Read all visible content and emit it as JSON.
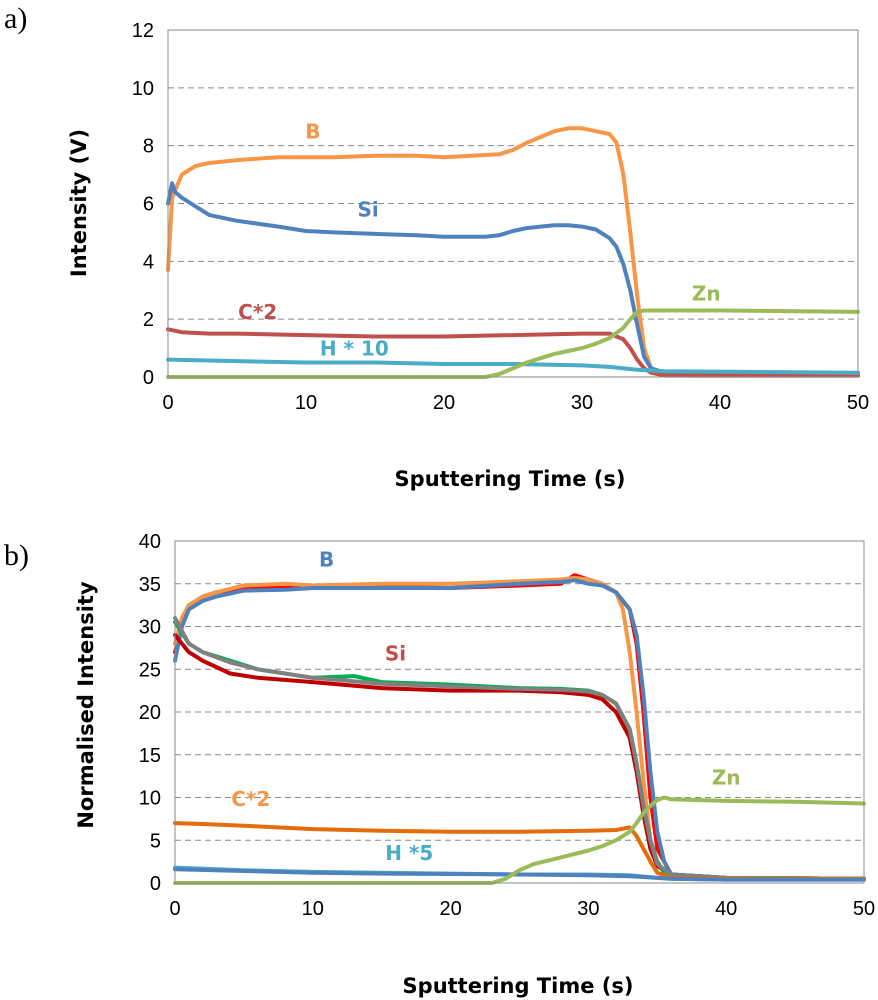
{
  "chart_data": [
    {
      "type": "line",
      "panel_label": "a)",
      "xlabel": "Sputtering Time (s)",
      "ylabel": "Intensity (V)",
      "xlim": [
        0,
        50
      ],
      "ylim": [
        0,
        12
      ],
      "xticks": [
        0,
        10,
        20,
        30,
        40,
        50
      ],
      "yticks": [
        0,
        2,
        4,
        6,
        8,
        10,
        12
      ],
      "grid": "horizontal dashed",
      "legend": "none",
      "series": [
        {
          "name": "B",
          "color": "#F79646",
          "x": [
            0,
            0.3,
            1,
            2,
            3,
            5,
            8,
            10,
            12,
            15,
            18,
            20,
            22,
            24,
            25,
            26,
            27,
            28,
            29,
            30,
            31,
            32,
            32.5,
            33,
            33.5,
            34,
            34.5,
            35,
            36,
            38,
            40,
            50
          ],
          "y": [
            3.7,
            6.2,
            7.0,
            7.3,
            7.4,
            7.5,
            7.6,
            7.6,
            7.6,
            7.65,
            7.65,
            7.6,
            7.65,
            7.7,
            7.85,
            8.1,
            8.3,
            8.5,
            8.6,
            8.6,
            8.5,
            8.4,
            8.1,
            7.0,
            5.0,
            2.8,
            1.0,
            0.3,
            0.1,
            0.05,
            0.05,
            0.05
          ]
        },
        {
          "name": "Si",
          "color": "#4F81BD",
          "x": [
            0,
            0.3,
            0.5,
            1,
            2,
            3,
            5,
            8,
            10,
            12,
            15,
            18,
            20,
            22,
            23,
            24,
            25,
            26,
            27,
            28,
            29,
            30,
            31,
            32,
            32.5,
            33,
            33.5,
            34,
            34.5,
            35,
            36,
            40,
            50
          ],
          "y": [
            6.0,
            6.7,
            6.4,
            6.2,
            5.9,
            5.6,
            5.4,
            5.2,
            5.05,
            5.0,
            4.95,
            4.9,
            4.85,
            4.85,
            4.85,
            4.9,
            5.05,
            5.15,
            5.2,
            5.25,
            5.25,
            5.2,
            5.1,
            4.8,
            4.5,
            3.9,
            3.0,
            1.8,
            0.7,
            0.3,
            0.15,
            0.1,
            0.1
          ]
        },
        {
          "name": "C*2",
          "color": "#C0504D",
          "x": [
            0,
            1,
            3,
            5,
            10,
            15,
            20,
            25,
            30,
            32,
            33,
            33.5,
            34,
            34.5,
            35,
            36,
            50
          ],
          "y": [
            1.65,
            1.55,
            1.5,
            1.5,
            1.45,
            1.4,
            1.4,
            1.45,
            1.5,
            1.5,
            1.3,
            1.0,
            0.6,
            0.3,
            0.15,
            0.05,
            0.05
          ]
        },
        {
          "name": "H * 10",
          "color": "#4BACC6",
          "x": [
            0,
            5,
            10,
            15,
            20,
            25,
            30,
            32,
            34,
            36,
            50
          ],
          "y": [
            0.6,
            0.55,
            0.5,
            0.5,
            0.45,
            0.45,
            0.4,
            0.35,
            0.25,
            0.2,
            0.15
          ]
        },
        {
          "name": "Zn",
          "color": "#9BBB59",
          "x": [
            0,
            23,
            24,
            25,
            26,
            27,
            28,
            29,
            30,
            31,
            32,
            33,
            33.5,
            34,
            34.5,
            35,
            36,
            40,
            50
          ],
          "y": [
            0.0,
            0.0,
            0.1,
            0.3,
            0.5,
            0.65,
            0.8,
            0.9,
            1.0,
            1.15,
            1.35,
            1.7,
            2.0,
            2.25,
            2.3,
            2.3,
            2.3,
            2.3,
            2.25
          ]
        }
      ],
      "annotations": [
        {
          "text": "B",
          "x": 10.5,
          "y": 8.25,
          "color": "#F79646"
        },
        {
          "text": "Si",
          "x": 14.5,
          "y": 5.55,
          "color": "#4F81BD"
        },
        {
          "text": "C*2",
          "x": 6.5,
          "y": 2.0,
          "color": "#C0504D"
        },
        {
          "text": "H * 10",
          "x": 13.5,
          "y": 0.75,
          "color": "#4BACC6"
        },
        {
          "text": "Zn",
          "x": 39,
          "y": 2.65,
          "color": "#9BBB59"
        }
      ]
    },
    {
      "type": "line",
      "panel_label": "b)",
      "xlabel": "Sputtering Time (s)",
      "ylabel": "Normalised Intensity",
      "xlim": [
        0,
        50
      ],
      "ylim": [
        0,
        40
      ],
      "xticks": [
        0,
        10,
        20,
        30,
        40,
        50
      ],
      "yticks": [
        0,
        5,
        10,
        15,
        20,
        25,
        30,
        35,
        40
      ],
      "grid": "horizontal dashed",
      "legend": "none",
      "series": [
        {
          "color": "#FF0000",
          "x": [
            0,
            0.5,
            1,
            2,
            3,
            5,
            8,
            10,
            15,
            20,
            25,
            28,
            29,
            30,
            31,
            32,
            33,
            33.5,
            34,
            34.5,
            35,
            36,
            40,
            50
          ],
          "y": [
            27,
            30,
            32,
            33.5,
            34,
            34.5,
            34.5,
            34.5,
            34.7,
            34.5,
            34.8,
            35,
            36,
            35.5,
            35,
            34,
            32,
            28,
            20,
            10,
            4,
            1,
            0.6,
            0.5
          ]
        },
        {
          "color": "#F79646",
          "x": [
            0,
            0.5,
            1,
            2,
            3,
            5,
            8,
            10,
            15,
            20,
            25,
            28,
            29,
            30,
            31,
            32,
            32.5,
            33,
            33.5,
            34,
            34.5,
            35,
            36,
            40,
            50
          ],
          "y": [
            28,
            31,
            32.5,
            33.5,
            34,
            34.8,
            35,
            34.8,
            35,
            35,
            35.3,
            35.5,
            35.7,
            35.5,
            35,
            34,
            32,
            27,
            20,
            12,
            5,
            2,
            0.8,
            0.6,
            0.5
          ]
        },
        {
          "color": "#4F81BD",
          "x": [
            0,
            0.5,
            1,
            2,
            3,
            5,
            8,
            10,
            15,
            20,
            25,
            28,
            29,
            30,
            31,
            32,
            33,
            33.5,
            34,
            34.5,
            35,
            35.5,
            36,
            40,
            50
          ],
          "y": [
            26,
            30,
            32,
            33,
            33.5,
            34.2,
            34.3,
            34.5,
            34.5,
            34.5,
            35,
            35.2,
            35.4,
            35,
            34.8,
            34,
            32,
            29,
            22,
            13,
            6,
            2.5,
            1,
            0.6,
            0.5
          ]
        },
        {
          "color": "#C00000",
          "x": [
            0,
            1,
            2,
            4,
            6,
            10,
            15,
            20,
            25,
            28,
            30,
            31,
            32,
            33,
            33.5,
            34,
            34.5,
            35,
            36,
            40,
            50
          ],
          "y": [
            29,
            27,
            26,
            24.5,
            24,
            23.5,
            22.8,
            22.5,
            22.5,
            22.3,
            22,
            21.5,
            20,
            17,
            13,
            8,
            4,
            2,
            1,
            0.6,
            0.5
          ]
        },
        {
          "color": "#00B050",
          "x": [
            0,
            1,
            2,
            4,
            6,
            10,
            13,
            15,
            20,
            25,
            28,
            30,
            31,
            32,
            33,
            33.5,
            34,
            34.5,
            35,
            35.5,
            36,
            40,
            50
          ],
          "y": [
            30.5,
            28,
            27,
            26,
            25,
            24,
            24.2,
            23.5,
            23.2,
            22.8,
            22.7,
            22.5,
            22,
            21,
            18,
            14,
            9,
            5,
            2.5,
            1.2,
            0.8,
            0.6,
            0.5
          ]
        },
        {
          "color": "#808080",
          "x": [
            0,
            1,
            2,
            4,
            6,
            10,
            15,
            20,
            25,
            28,
            30,
            31,
            32,
            33,
            33.5,
            34,
            34.5,
            35,
            36,
            40,
            50
          ],
          "y": [
            31,
            28,
            27,
            25.8,
            25,
            24,
            23.3,
            23,
            22.7,
            22.6,
            22.4,
            22,
            21,
            18,
            14,
            9,
            5,
            2.2,
            1,
            0.6,
            0.5
          ]
        },
        {
          "color": "#E46C0A",
          "x": [
            0,
            2,
            5,
            10,
            15,
            20,
            25,
            30,
            32,
            33,
            33.5,
            34,
            34.5,
            35,
            36,
            40,
            50
          ],
          "y": [
            7,
            6.9,
            6.7,
            6.3,
            6.1,
            6.0,
            6.0,
            6.1,
            6.2,
            6.5,
            5.5,
            4,
            2.5,
            1.2,
            0.6,
            0.5,
            0.5
          ]
        },
        {
          "color": "#4BACC6",
          "x": [
            0,
            5,
            10,
            15,
            20,
            25,
            30,
            33,
            35,
            36,
            40,
            50
          ],
          "y": [
            1.8,
            1.5,
            1.3,
            1.2,
            1.1,
            1.0,
            1.0,
            0.9,
            0.6,
            0.5,
            0.4,
            0.4
          ]
        },
        {
          "color": "#4F81BD",
          "x": [
            0,
            5,
            10,
            15,
            20,
            25,
            30,
            33,
            35,
            36,
            40,
            50
          ],
          "y": [
            1.6,
            1.4,
            1.2,
            1.1,
            1.05,
            1.0,
            0.9,
            0.8,
            0.6,
            0.5,
            0.4,
            0.4
          ]
        },
        {
          "color": "#9BBB59",
          "x": [
            0,
            23,
            24,
            25,
            26,
            28,
            30,
            31,
            32,
            33,
            33.5,
            34,
            34.5,
            35,
            35.5,
            36,
            40,
            45,
            50
          ],
          "y": [
            0,
            0,
            0.5,
            1.5,
            2.2,
            3,
            3.8,
            4.3,
            5,
            6,
            7,
            8.2,
            9,
            9.7,
            10,
            9.8,
            9.6,
            9.5,
            9.3
          ]
        }
      ],
      "annotations": [
        {
          "text": "B",
          "x": 11,
          "y": 37,
          "color": "#4F81BD"
        },
        {
          "text": "Si",
          "x": 16,
          "y": 26,
          "color": "#C0504D"
        },
        {
          "text": "C*2",
          "x": 5.5,
          "y": 9,
          "color": "#F79646"
        },
        {
          "text": "H *5",
          "x": 17,
          "y": 2.7,
          "color": "#4BACC6"
        },
        {
          "text": "Zn",
          "x": 40,
          "y": 11.5,
          "color": "#9BBB59"
        }
      ]
    }
  ]
}
